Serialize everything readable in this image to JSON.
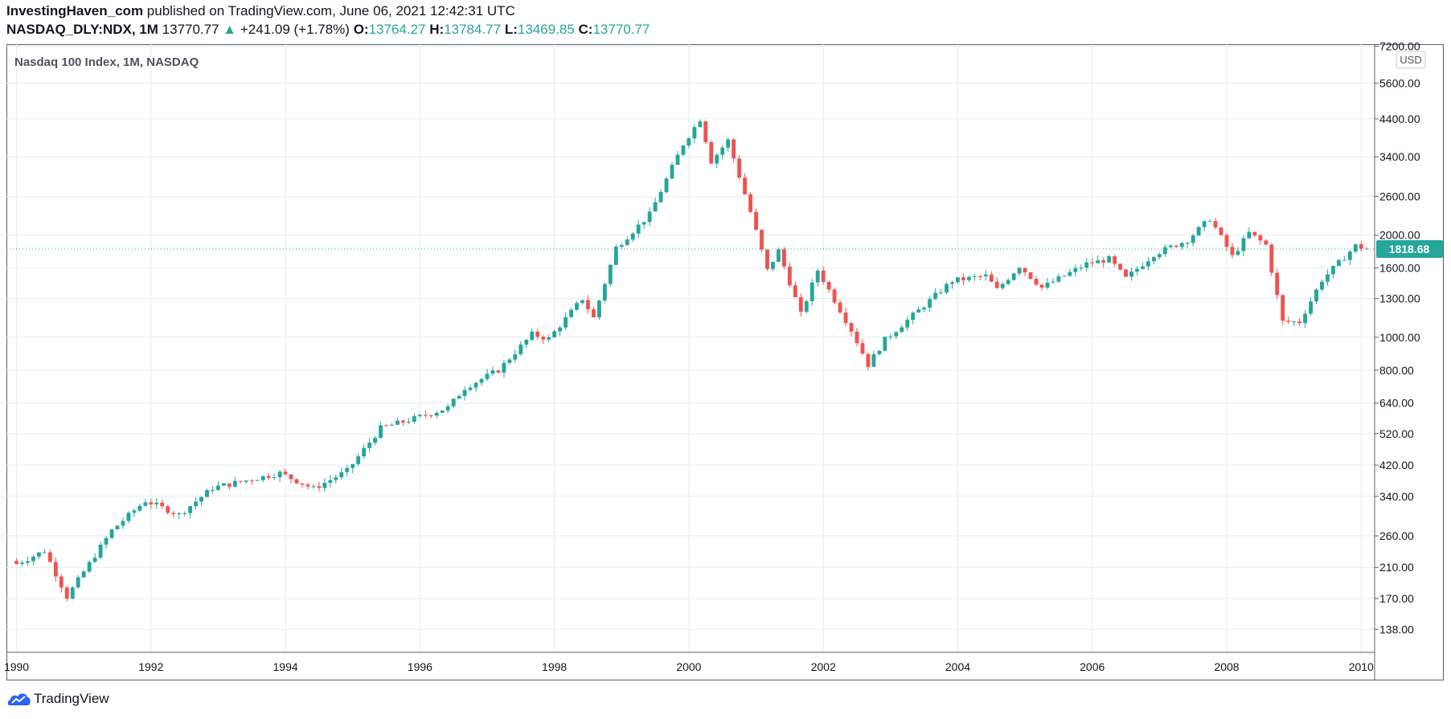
{
  "header": {
    "author": "InvestingHaven_com",
    "published_text": "published on TradingView.com, June 06, 2021 12:42:31 UTC",
    "symbol": "NASDAQ_DLY:NDX, 1M",
    "last": "13770.77",
    "change": "+241.09 (+1.78%)",
    "o_label": "O:",
    "o_value": "13764.27",
    "h_label": "H:",
    "h_value": "13784.77",
    "l_label": "L:",
    "l_value": "13469.85",
    "c_label": "C:",
    "c_value": "13770.77"
  },
  "footer": {
    "brand": "TradingView"
  },
  "colors": {
    "up": "#26a69a",
    "down": "#ef5350",
    "grid": "#e1ecf2",
    "axis": "#5d606b",
    "price_badge": "#26a69a"
  },
  "chart_data": {
    "type": "candlestick",
    "title": "Nasdaq 100 Index, 1M, NASDAQ",
    "currency": "USD",
    "y_scale": "log",
    "ylim": [
      118,
      7300
    ],
    "y_ticks": [
      "138.00",
      "170.00",
      "210.00",
      "260.00",
      "340.00",
      "420.00",
      "520.00",
      "640.00",
      "800.00",
      "1000.00",
      "1300.00",
      "1600.00",
      "2000.00",
      "2600.00",
      "3400.00",
      "4400.00",
      "5600.00",
      "7200.00"
    ],
    "x_range_years": [
      1989.85,
      2010.2
    ],
    "x_ticks": [
      "1990",
      "1992",
      "1994",
      "1996",
      "1998",
      "2000",
      "2002",
      "2004",
      "2006",
      "2008",
      "2010"
    ],
    "current_price": "1818.68",
    "grid": true,
    "keypoints": [
      {
        "date": "1990-01",
        "close": 215
      },
      {
        "date": "1990-06",
        "close": 235
      },
      {
        "date": "1990-10",
        "close": 172
      },
      {
        "date": "1991-06",
        "close": 270
      },
      {
        "date": "1991-12",
        "close": 330
      },
      {
        "date": "1992-06",
        "close": 300
      },
      {
        "date": "1992-12",
        "close": 360
      },
      {
        "date": "1993-12",
        "close": 398
      },
      {
        "date": "1994-06",
        "close": 358
      },
      {
        "date": "1994-12",
        "close": 404
      },
      {
        "date": "1995-06",
        "close": 540
      },
      {
        "date": "1995-12",
        "close": 576
      },
      {
        "date": "1996-06",
        "close": 620
      },
      {
        "date": "1996-09",
        "close": 710
      },
      {
        "date": "1997-03",
        "close": 800
      },
      {
        "date": "1997-09",
        "close": 1020
      },
      {
        "date": "1997-12",
        "close": 990
      },
      {
        "date": "1998-06",
        "close": 1300
      },
      {
        "date": "1998-08",
        "close": 1140
      },
      {
        "date": "1998-12",
        "close": 1836
      },
      {
        "date": "1999-06",
        "close": 2300
      },
      {
        "date": "1999-12",
        "close": 3708
      },
      {
        "date": "2000-03",
        "close": 4397
      },
      {
        "date": "2000-05",
        "close": 3300
      },
      {
        "date": "2000-08",
        "close": 3800
      },
      {
        "date": "2000-12",
        "close": 2340
      },
      {
        "date": "2001-03",
        "close": 1573
      },
      {
        "date": "2001-05",
        "close": 1800
      },
      {
        "date": "2001-09",
        "close": 1168
      },
      {
        "date": "2001-12",
        "close": 1577
      },
      {
        "date": "2002-06",
        "close": 1050
      },
      {
        "date": "2002-09",
        "close": 830
      },
      {
        "date": "2002-12",
        "close": 984
      },
      {
        "date": "2003-06",
        "close": 1200
      },
      {
        "date": "2003-12",
        "close": 1467
      },
      {
        "date": "2004-06",
        "close": 1516
      },
      {
        "date": "2004-08",
        "close": 1380
      },
      {
        "date": "2004-12",
        "close": 1621
      },
      {
        "date": "2005-04",
        "close": 1400
      },
      {
        "date": "2005-12",
        "close": 1645
      },
      {
        "date": "2006-04",
        "close": 1700
      },
      {
        "date": "2006-07",
        "close": 1490
      },
      {
        "date": "2006-12",
        "close": 1756
      },
      {
        "date": "2007-06",
        "close": 1934
      },
      {
        "date": "2007-10",
        "close": 2238
      },
      {
        "date": "2008-02",
        "close": 1730
      },
      {
        "date": "2008-05",
        "close": 2030
      },
      {
        "date": "2008-08",
        "close": 1870
      },
      {
        "date": "2008-11",
        "close": 1110
      },
      {
        "date": "2009-02",
        "close": 1110
      },
      {
        "date": "2009-06",
        "close": 1477
      },
      {
        "date": "2009-12",
        "close": 1860
      },
      {
        "date": "2010-02",
        "close": 1818.68
      }
    ]
  }
}
